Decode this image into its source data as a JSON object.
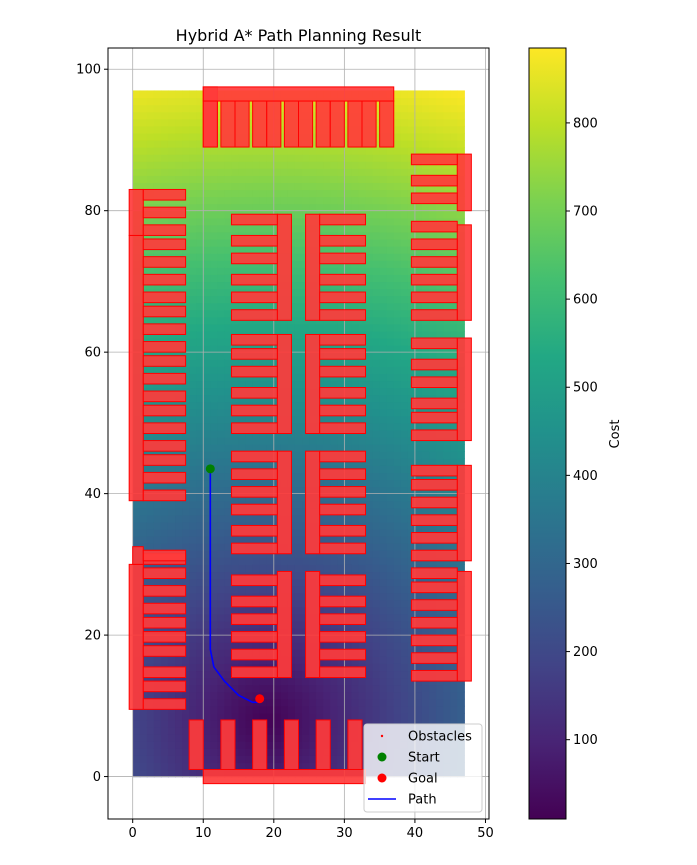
{
  "chart_data": {
    "type": "heatmap",
    "title": "Hybrid A* Path Planning Result",
    "xlabel": "",
    "ylabel": "",
    "xlim": [
      -3.5,
      50.5
    ],
    "ylim": [
      -6,
      103
    ],
    "x_ticks": [
      0,
      10,
      20,
      30,
      40,
      50
    ],
    "y_ticks": [
      0,
      20,
      40,
      60,
      80,
      100
    ],
    "grid": true,
    "legend_placement": "lower-right",
    "cost_map": {
      "extent": {
        "x": [
          0,
          47
        ],
        "y": [
          0,
          97
        ]
      },
      "low_point": [
        19,
        8
      ],
      "cost_range": [
        10,
        885
      ],
      "colormap": "viridis"
    },
    "colorbar": {
      "label": "Cost",
      "min": 10,
      "max": 885,
      "ticks": [
        100,
        200,
        300,
        400,
        500,
        600,
        700,
        800
      ]
    },
    "legend": [
      {
        "key": "obstacles",
        "label": "Obstacles",
        "color": "#ff0000",
        "marker": "dot"
      },
      {
        "key": "start",
        "label": "Start",
        "color": "#008000",
        "marker": "circle"
      },
      {
        "key": "goal",
        "label": "Goal",
        "color": "#ff0000",
        "marker": "circle"
      },
      {
        "key": "path",
        "label": "Path",
        "color": "#0000ff",
        "marker": "line"
      }
    ],
    "start": [
      11,
      43.5
    ],
    "goal": [
      18,
      11
    ],
    "path": [
      [
        11,
        43.5
      ],
      [
        11,
        30
      ],
      [
        11,
        18
      ],
      [
        11.5,
        15.5
      ],
      [
        13,
        13.5
      ],
      [
        15,
        11.5
      ],
      [
        17,
        10.5
      ],
      [
        18,
        10.5
      ]
    ],
    "obstacles": {
      "color": "#ff0000",
      "marker_size": 1,
      "combs": [
        {
          "spine": {
            "x": [
              10,
              12
            ],
            "y": [
              89,
              97.5
            ]
          },
          "teeth": [],
          "teeth_x": [
            10,
            37
          ],
          "teeth_width": 2
        },
        {
          "spine": {
            "x": [
              10,
              37
            ],
            "y": [
              95.5,
              97.5
            ]
          },
          "teeth": [
            12,
            14.5,
            16.5,
            19,
            21,
            23.5,
            25.5,
            28,
            30,
            32.5,
            34.5,
            37
          ],
          "teeth_y": [
            89,
            95.5
          ],
          "teeth_width": 2
        },
        {
          "spine": {
            "x": [
              10,
              33
            ],
            "y": [
              -1,
              1
            ]
          },
          "teeth": [
            10,
            14.5,
            19,
            23.5,
            28,
            32.5
          ],
          "teeth_y": [
            1,
            8
          ],
          "teeth_width": 2
        },
        {
          "spine": {
            "x": [
              -0.5,
              1.5
            ],
            "y": [
              9.5,
              30
            ]
          },
          "teeth_x_end": 7.5,
          "teeth": [
            9.5,
            12,
            14,
            17,
            19,
            21,
            23,
            25.5,
            28,
            30
          ],
          "tooth_height": 1.5
        },
        {
          "spine": {
            "x": [
              -0.5,
              1.5
            ],
            "y": [
              39,
              76.5
            ]
          },
          "teeth_x_end": 7.5,
          "teeth": [
            39,
            41.5,
            44,
            46,
            48.5,
            51,
            53,
            55.5,
            58,
            60,
            62.5,
            65,
            67,
            69.5,
            72,
            74.5
          ],
          "tooth_height": 1.5
        },
        {
          "spine": {
            "x": [
              -0.5,
              1.5
            ],
            "y": [
              76.5,
              83
            ]
          },
          "teeth_x_end": 7.5,
          "teeth": [
            76.5,
            79,
            81.5
          ],
          "tooth_height": 1.5
        },
        {
          "spine": {
            "x": [
              0,
              1.5
            ],
            "y": [
              30,
              32.5
            ]
          },
          "teeth_x_end": 7.5,
          "teeth": [
            30.5
          ],
          "tooth_height": 1.5
        },
        {
          "spine": {
            "x": [
              20.5,
              22.5
            ],
            "y": [
              14,
              29
            ]
          },
          "teeth_x_start": 14,
          "teeth": [
            14,
            16.5,
            19,
            21.5,
            24,
            27
          ],
          "tooth_height": 1.5
        },
        {
          "spine": {
            "x": [
              20.5,
              22.5
            ],
            "y": [
              31.5,
              46
            ]
          },
          "teeth_x_start": 14,
          "teeth": [
            31.5,
            34,
            37,
            39.5,
            42,
            44.5
          ],
          "tooth_height": 1.5
        },
        {
          "spine": {
            "x": [
              20.5,
              22.5
            ],
            "y": [
              48.5,
              62.5
            ]
          },
          "teeth_x_start": 14,
          "teeth": [
            48.5,
            51,
            53.5,
            56.5,
            59,
            61
          ],
          "tooth_height": 1.5
        },
        {
          "spine": {
            "x": [
              20.5,
              22.5
            ],
            "y": [
              64.5,
              79.5
            ]
          },
          "teeth_x_start": 14,
          "teeth": [
            64.5,
            67,
            69.5,
            72.5,
            75,
            78
          ],
          "tooth_height": 1.5
        },
        {
          "spine": {
            "x": [
              24.5,
              26.5
            ],
            "y": [
              14,
              29
            ]
          },
          "teeth_x_end": 33,
          "teeth": [
            14,
            16.5,
            19,
            21.5,
            24,
            27
          ],
          "tooth_height": 1.5
        },
        {
          "spine": {
            "x": [
              24.5,
              26.5
            ],
            "y": [
              31.5,
              46
            ]
          },
          "teeth_x_end": 33,
          "teeth": [
            31.5,
            34,
            37,
            39.5,
            42,
            44.5
          ],
          "tooth_height": 1.5
        },
        {
          "spine": {
            "x": [
              24.5,
              26.5
            ],
            "y": [
              48.5,
              62.5
            ]
          },
          "teeth_x_end": 33,
          "teeth": [
            48.5,
            51,
            53.5,
            56.5,
            59,
            61
          ],
          "tooth_height": 1.5
        },
        {
          "spine": {
            "x": [
              24.5,
              26.5
            ],
            "y": [
              64.5,
              79.5
            ]
          },
          "teeth_x_end": 33,
          "teeth": [
            64.5,
            67,
            69.5,
            72.5,
            75,
            78
          ],
          "tooth_height": 1.5
        },
        {
          "spine": {
            "x": [
              46,
              48
            ],
            "y": [
              13.5,
              29
            ]
          },
          "teeth_x_start": 39.5,
          "teeth": [
            13.5,
            16,
            18.5,
            21,
            23.5,
            26,
            28
          ],
          "tooth_height": 1.5
        },
        {
          "spine": {
            "x": [
              46,
              48
            ],
            "y": [
              30.5,
              44
            ]
          },
          "teeth_x_start": 39.5,
          "teeth": [
            30.5,
            33,
            35.5,
            38,
            40.5,
            42.5
          ],
          "tooth_height": 1.5
        },
        {
          "spine": {
            "x": [
              46,
              48
            ],
            "y": [
              47.5,
              62
            ]
          },
          "teeth_x_start": 39.5,
          "teeth": [
            47.5,
            50,
            52,
            55,
            57.5,
            60.5
          ],
          "tooth_height": 1.5
        },
        {
          "spine": {
            "x": [
              46,
              48
            ],
            "y": [
              64.5,
              78
            ]
          },
          "teeth_x_start": 39.5,
          "teeth": [
            64.5,
            67,
            69.5,
            72,
            74.5,
            77
          ],
          "tooth_height": 1.5
        },
        {
          "spine": {
            "x": [
              46,
              48
            ],
            "y": [
              80,
              88
            ]
          },
          "teeth_x_start": 39.5,
          "teeth": [
            81,
            83.5,
            86.5
          ],
          "tooth_height": 1.5
        }
      ]
    }
  }
}
